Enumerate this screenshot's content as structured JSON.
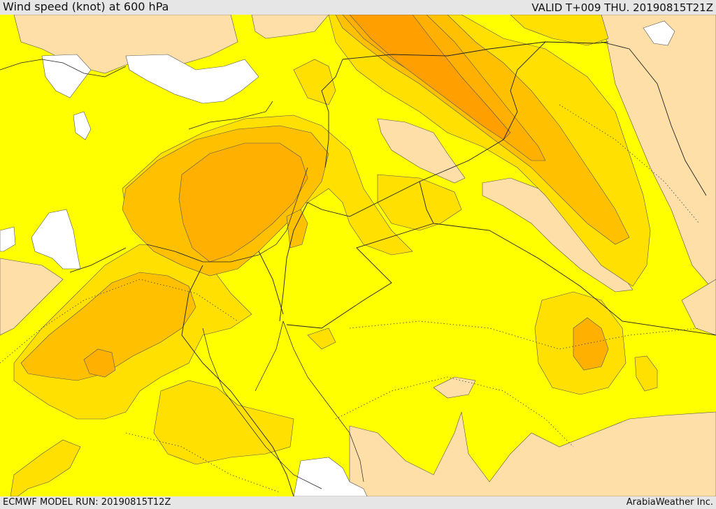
{
  "header": {
    "title": "Wind speed (knot) at 600 hPa",
    "valid": "VALID T+009 THU. 20190815T21Z"
  },
  "footer": {
    "model_run": "ECMWF MODEL RUN: 20190815T12Z",
    "credit": "ArabiaWeather Inc."
  },
  "colors": {
    "sea_background": "#ffffff",
    "band_lowest": "#fedfa8",
    "band_low": "#ffff00",
    "band_mid": "#ffe000",
    "band_high": "#ffc000",
    "band_higher": "#ffb000",
    "band_max": "#ff9f00"
  }
}
